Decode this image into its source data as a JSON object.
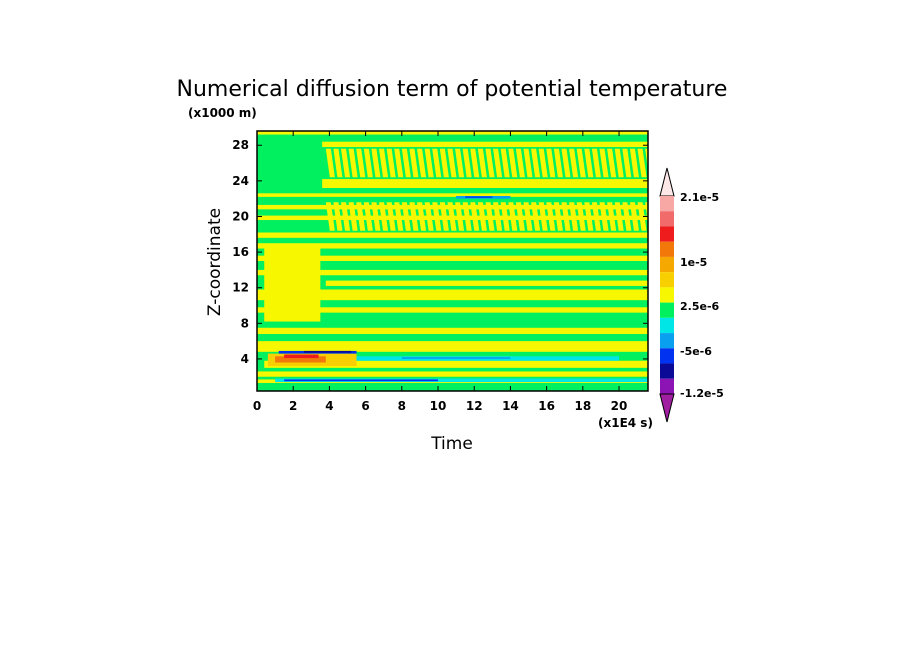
{
  "chart_data": {
    "type": "heatmap",
    "title": "Numerical diffusion term of potential temperature",
    "xlabel": "Time",
    "ylabel": "Z-coordinate",
    "x_unit": "(x1E4 s)",
    "y_unit": "(x1000 m)",
    "xlim": [
      0,
      21.6
    ],
    "ylim": [
      0.4,
      29.6
    ],
    "x_ticks": [
      "0",
      "2",
      "4",
      "6",
      "8",
      "10",
      "12",
      "14",
      "16",
      "18",
      "20"
    ],
    "y_ticks": [
      "4",
      "8",
      "12",
      "16",
      "20",
      "24",
      "28"
    ],
    "colorbar": {
      "labels": [
        "2.1e-5",
        "1e-5",
        "2.5e-6",
        "-5e-6",
        "-1.2e-5"
      ],
      "colors": [
        "#fde7e7",
        "#f7a7a4",
        "#f26b6b",
        "#ee1c1c",
        "#f2780a",
        "#f5a800",
        "#f8cf00",
        "#f7f700",
        "#00f060",
        "#00e6e6",
        "#0aa0f0",
        "#0032f0",
        "#0a0a96",
        "#8c14b4",
        "#a01ea0"
      ],
      "extend": "both"
    },
    "dominant_background": "#00f060",
    "bands": [
      {
        "z": [
          1.3,
          1.7
        ],
        "t": [
          0,
          21.6
        ],
        "color": "#f7f700"
      },
      {
        "z": [
          2.0,
          2.6
        ],
        "t": [
          0,
          21.6
        ],
        "color": "#f7f700"
      },
      {
        "z": [
          3.0,
          3.8
        ],
        "t": [
          0.4,
          21.6
        ],
        "color": "#f7f700"
      },
      {
        "z": [
          4.8,
          6.0
        ],
        "t": [
          0,
          21.6
        ],
        "color": "#f7f700"
      },
      {
        "z": [
          6.8,
          7.5
        ],
        "t": [
          0,
          21.6
        ],
        "color": "#f7f700"
      },
      {
        "z": [
          9.2,
          9.8
        ],
        "t": [
          0,
          21.6
        ],
        "color": "#f7f700"
      },
      {
        "z": [
          10.6,
          11.8
        ],
        "t": [
          0,
          21.6
        ],
        "color": "#f7f700"
      },
      {
        "z": [
          12.2,
          12.8
        ],
        "t": [
          3.8,
          21.6
        ],
        "color": "#f7f700"
      },
      {
        "z": [
          13.4,
          14.0
        ],
        "t": [
          0,
          21.6
        ],
        "color": "#f7f700"
      },
      {
        "z": [
          15.0,
          15.6
        ],
        "t": [
          0,
          21.6
        ],
        "color": "#f7f700"
      },
      {
        "z": [
          16.4,
          17.0
        ],
        "t": [
          0,
          21.6
        ],
        "color": "#f7f700"
      },
      {
        "z": [
          17.6,
          18.2
        ],
        "t": [
          0,
          21.6
        ],
        "color": "#f7f700"
      },
      {
        "z": [
          19.6,
          20.1
        ],
        "t": [
          0,
          21.6
        ],
        "color": "#f7f700"
      },
      {
        "z": [
          20.8,
          21.3
        ],
        "t": [
          0,
          21.6
        ],
        "color": "#f7f700"
      },
      {
        "z": [
          22.2,
          22.6
        ],
        "t": [
          0,
          21.6
        ],
        "color": "#f7f700"
      },
      {
        "z": [
          23.2,
          24.2
        ],
        "t": [
          3.6,
          21.6
        ],
        "color": "#f7f700"
      },
      {
        "z": [
          27.8,
          28.4
        ],
        "t": [
          3.6,
          21.6
        ],
        "color": "#f7f700"
      },
      {
        "z": [
          29.2,
          29.6
        ],
        "t": [
          0,
          21.6
        ],
        "color": "#f7f700"
      },
      {
        "z": [
          8.2,
          16.8
        ],
        "t": [
          0.4,
          3.5
        ],
        "color": "#f7f700"
      },
      {
        "z": [
          3.2,
          4.6
        ],
        "t": [
          0.6,
          5.5
        ],
        "color": "#f8cf00"
      },
      {
        "z": [
          3.6,
          4.3
        ],
        "t": [
          1.0,
          3.8
        ],
        "color": "#f2780a"
      },
      {
        "z": [
          4.1,
          4.5
        ],
        "t": [
          1.5,
          3.4
        ],
        "color": "#ee1c1c"
      },
      {
        "z": [
          4.6,
          4.9
        ],
        "t": [
          1.2,
          5.5
        ],
        "color": "#0032f0"
      },
      {
        "z": [
          4.7,
          4.9
        ],
        "t": [
          2.6,
          5.2
        ],
        "color": "#0a0a96"
      },
      {
        "z": [
          3.8,
          4.3
        ],
        "t": [
          5.5,
          20.0
        ],
        "color": "#00e6e6"
      },
      {
        "z": [
          4.0,
          4.2
        ],
        "t": [
          8.0,
          14.0
        ],
        "color": "#0aa0f0"
      },
      {
        "z": [
          1.4,
          1.8
        ],
        "t": [
          1.0,
          21.6
        ],
        "color": "#00e6e6"
      },
      {
        "z": [
          1.5,
          1.7
        ],
        "t": [
          1.5,
          10.0
        ],
        "color": "#0032f0"
      },
      {
        "z": [
          22.0,
          22.3
        ],
        "t": [
          11.0,
          14.0
        ],
        "color": "#0aa0f0"
      },
      {
        "z": [
          22.1,
          22.25
        ],
        "t": [
          11.5,
          13.0
        ],
        "color": "#0032f0"
      }
    ]
  }
}
